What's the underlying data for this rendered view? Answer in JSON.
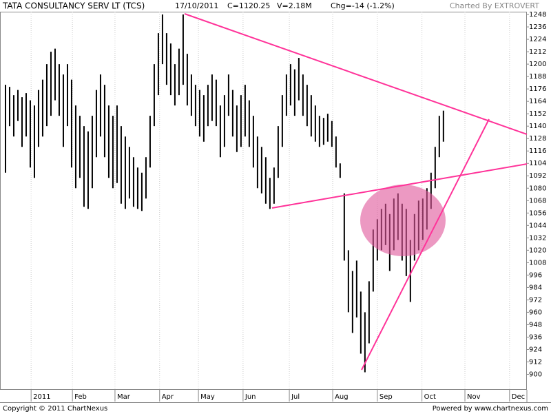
{
  "chart_data": {
    "type": "hilo",
    "title": "TATA CONSULTANCY SERV LT (TCS)",
    "date": "17/10/2011",
    "close": "C=1120.25",
    "volume": "V=2.18M",
    "change": "Chg=-14 (-1.2%)",
    "credit": "Charted By EXTROVERT",
    "copyright": "Copyright © 2011 ChartNexus",
    "powered": "Powered by www.chartnexus.com",
    "color": "#000000",
    "high": [
      1180,
      1178,
      1170,
      1175,
      1168,
      1172,
      1165,
      1160,
      1175,
      1185,
      1200,
      1212,
      1215,
      1200,
      1190,
      1200,
      1185,
      1160,
      1150,
      1140,
      1135,
      1150,
      1175,
      1190,
      1180,
      1160,
      1150,
      1160,
      1140,
      1130,
      1120,
      1110,
      1100,
      1095,
      1110,
      1150,
      1200,
      1230,
      1248,
      1230,
      1220,
      1200,
      1215,
      1248,
      1210,
      1190,
      1180,
      1175,
      1170,
      1180,
      1190,
      1185,
      1160,
      1170,
      1190,
      1175,
      1160,
      1170,
      1180,
      1165,
      1150,
      1130,
      1120,
      1110,
      1090,
      1100,
      1140,
      1170,
      1190,
      1200,
      1195,
      1206,
      1190,
      1180,
      1170,
      1160,
      1150,
      1148,
      1152,
      1145,
      1130,
      1104,
      1075,
      1020,
      1000,
      1010,
      980,
      960,
      990,
      1040,
      1050,
      1060,
      1065,
      1055,
      1070,
      1075,
      1065,
      1060,
      1030,
      1055,
      1068,
      1070,
      1080,
      1095,
      1120,
      1150,
      1155
    ],
    "low": [
      1095,
      1140,
      1130,
      1145,
      1120,
      1130,
      1100,
      1090,
      1120,
      1130,
      1140,
      1150,
      1165,
      1150,
      1120,
      1140,
      1100,
      1080,
      1090,
      1062,
      1060,
      1080,
      1110,
      1130,
      1110,
      1090,
      1080,
      1085,
      1065,
      1060,
      1070,
      1062,
      1060,
      1058,
      1070,
      1100,
      1140,
      1170,
      1200,
      1180,
      1170,
      1160,
      1170,
      1180,
      1160,
      1150,
      1140,
      1130,
      1125,
      1140,
      1145,
      1140,
      1110,
      1120,
      1150,
      1130,
      1115,
      1120,
      1130,
      1120,
      1100,
      1080,
      1075,
      1065,
      1060,
      1065,
      1090,
      1120,
      1150,
      1160,
      1150,
      1165,
      1150,
      1140,
      1130,
      1125,
      1120,
      1122,
      1125,
      1120,
      1100,
      1090,
      1010,
      960,
      940,
      955,
      920,
      902,
      930,
      980,
      1010,
      1020,
      1025,
      1000,
      1020,
      1030,
      1010,
      995,
      970,
      1010,
      1020,
      1030,
      1040,
      1060,
      1080,
      1110,
      1125
    ],
    "xlim": [
      -1.33,
      126.2
    ],
    "xticks": [
      {
        "value": 6.2,
        "label": "2011"
      },
      {
        "value": 16.2,
        "label": "Feb"
      },
      {
        "value": 26.5,
        "label": "Mar"
      },
      {
        "value": 37.3,
        "label": "Apr"
      },
      {
        "value": 46.7,
        "label": "May"
      },
      {
        "value": 57.5,
        "label": "Jun"
      },
      {
        "value": 68.7,
        "label": "Jul"
      },
      {
        "value": 79.2,
        "label": "Aug"
      },
      {
        "value": 90,
        "label": "Sep"
      },
      {
        "value": 100.8,
        "label": "Oct"
      },
      {
        "value": 111.2,
        "label": "Nov"
      },
      {
        "value": 122,
        "label": "Dec"
      }
    ],
    "ylim": [
      885,
      1250.7
    ],
    "yticks": [
      900,
      912,
      924,
      936,
      948,
      960,
      972,
      984,
      996,
      1008,
      1020,
      1032,
      1044,
      1056,
      1068,
      1080,
      1092,
      1104,
      1116,
      1128,
      1140,
      1152,
      1164,
      1176,
      1188,
      1200,
      1212,
      1224,
      1236,
      1248
    ],
    "grid": true
  }
}
